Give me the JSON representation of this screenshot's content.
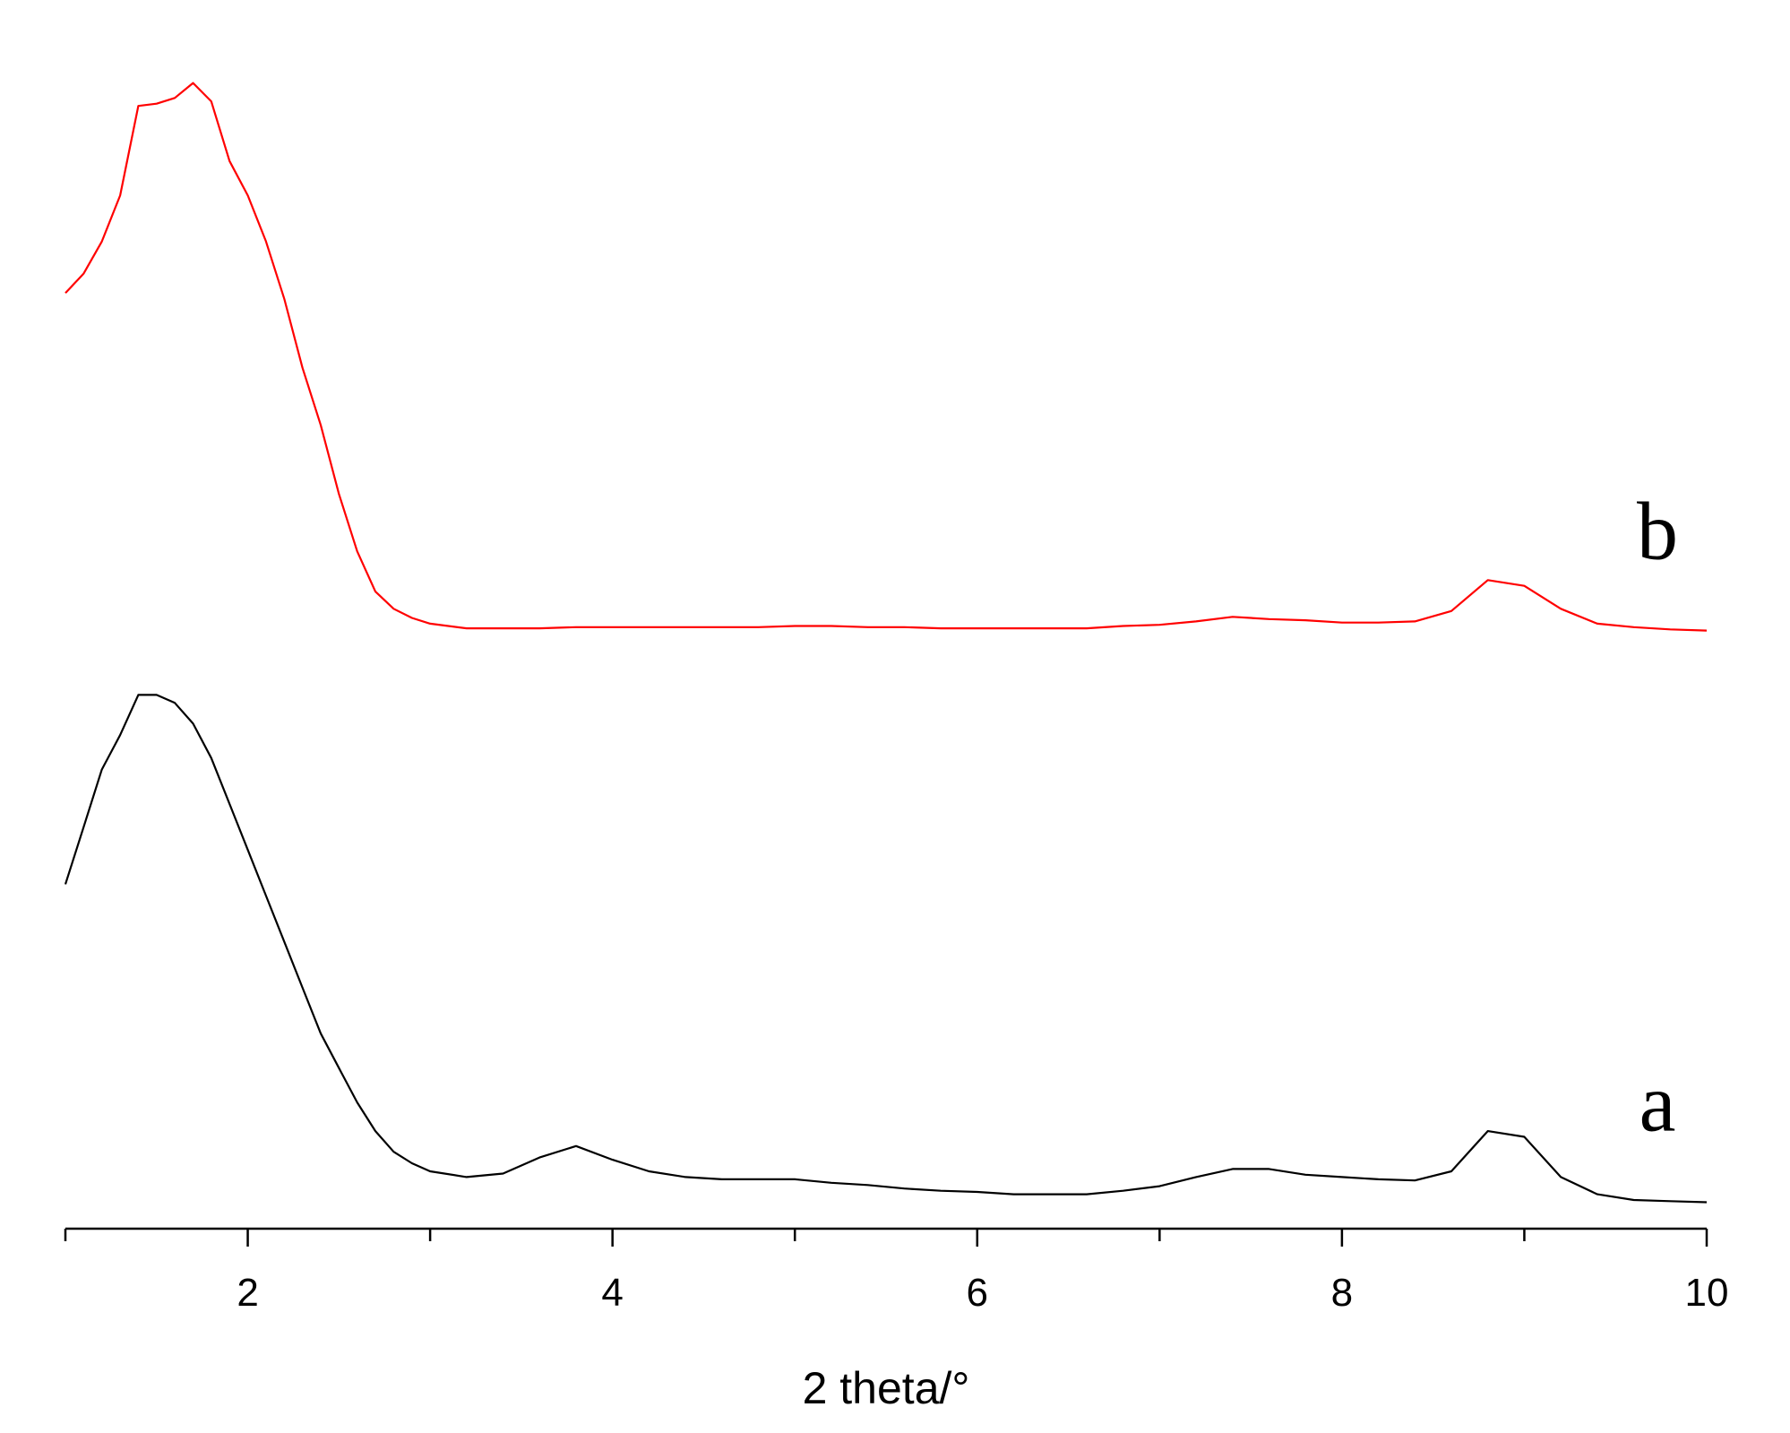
{
  "chart_data": {
    "type": "line",
    "xlabel": "2 theta/°",
    "x": [
      1.0,
      1.1,
      1.2,
      1.3,
      1.4,
      1.5,
      1.6,
      1.7,
      1.8,
      1.9,
      2.0,
      2.1,
      2.2,
      2.3,
      2.4,
      2.5,
      2.6,
      2.7,
      2.8,
      2.9,
      3.0,
      3.2,
      3.4,
      3.6,
      3.8,
      4.0,
      4.2,
      4.4,
      4.6,
      4.8,
      5.0,
      5.2,
      5.4,
      5.6,
      5.8,
      6.0,
      6.2,
      6.4,
      6.6,
      6.8,
      7.0,
      7.2,
      7.4,
      7.6,
      7.8,
      8.0,
      8.2,
      8.4,
      8.6,
      8.8,
      9.0,
      9.2,
      9.4,
      9.6,
      9.8,
      10.0
    ],
    "series": [
      {
        "name": "b",
        "color": "#ff0000",
        "values": [
          81.5,
          83.2,
          86,
          90,
          97.8,
          98,
          98.5,
          99.8,
          98.2,
          93,
          90,
          86,
          81,
          75,
          70,
          64,
          59,
          55.5,
          54,
          53.2,
          52.7,
          52.3,
          52.3,
          52.3,
          52.4,
          52.4,
          52.4,
          52.4,
          52.4,
          52.4,
          52.5,
          52.5,
          52.4,
          52.4,
          52.3,
          52.3,
          52.3,
          52.3,
          52.3,
          52.5,
          52.6,
          52.9,
          53.3,
          53.1,
          53.0,
          52.8,
          52.8,
          52.9,
          53.8,
          56.5,
          56,
          54,
          52.7,
          52.4,
          52.2,
          52.1
        ]
      },
      {
        "name": "a",
        "color": "#000000",
        "values": [
          30,
          35,
          40,
          43,
          46.5,
          46.5,
          45.8,
          44,
          41,
          37,
          33,
          29,
          25,
          21,
          17,
          14,
          11,
          8.5,
          6.7,
          5.7,
          5,
          4.5,
          4.8,
          6.2,
          7.2,
          6,
          5,
          4.5,
          4.3,
          4.3,
          4.3,
          4,
          3.8,
          3.5,
          3.3,
          3.2,
          3,
          3,
          3,
          3.3,
          3.7,
          4.5,
          5.2,
          5.2,
          4.7,
          4.5,
          4.3,
          4.2,
          5,
          8.5,
          8,
          4.5,
          3,
          2.5,
          2.4,
          2.3
        ]
      }
    ],
    "xlim": [
      1,
      10
    ],
    "xticks": [
      2,
      4,
      6,
      8,
      10
    ],
    "xminorticks": [
      1,
      3,
      5,
      7,
      9
    ],
    "ylim": [
      0,
      105
    ]
  }
}
